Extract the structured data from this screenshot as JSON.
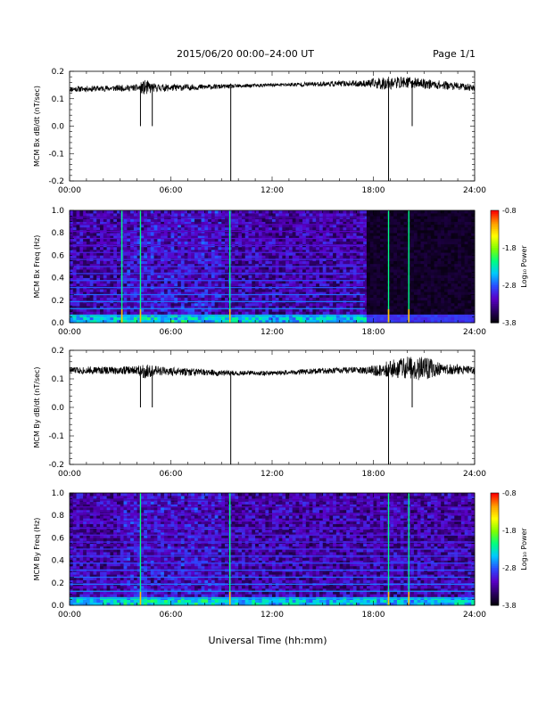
{
  "header": {
    "title": "2015/06/20  00:00–24:00 UT",
    "page": "Page 1/1"
  },
  "footer": {
    "xlabel": "Universal Time (hh:mm)"
  },
  "colorbar": {
    "label": "Log₁₀ Power",
    "ticks": [
      "-0.8",
      "-1.8",
      "-2.8",
      "-3.8"
    ],
    "colors": [
      "#000000",
      "#2a0060",
      "#5a00c8",
      "#2a4cff",
      "#00c8ff",
      "#00ff80",
      "#80ff00",
      "#ffff00",
      "#ffa000",
      "#ff0000"
    ]
  },
  "chart_data": [
    {
      "type": "line",
      "ylabel": "MCM Bx dB/dt (nT/sec)",
      "xticks": [
        "00:00",
        "06:00",
        "12:00",
        "18:00",
        "24:00"
      ],
      "xlim": [
        0,
        24
      ],
      "yticks": [
        "0.2",
        "0.1",
        "0.0",
        "-0.1",
        "-0.2"
      ],
      "ylim": [
        -0.2,
        0.2
      ],
      "baseline": [
        [
          0,
          0.135
        ],
        [
          4,
          0.14
        ],
        [
          6,
          0.14
        ],
        [
          9.5,
          0.145
        ],
        [
          12,
          0.15
        ],
        [
          16,
          0.155
        ],
        [
          18,
          0.155
        ],
        [
          20,
          0.16
        ],
        [
          24,
          0.14
        ]
      ],
      "noise": [
        [
          0,
          0.01
        ],
        [
          4,
          0.012
        ],
        [
          4.5,
          0.03
        ],
        [
          5,
          0.015
        ],
        [
          9,
          0.008
        ],
        [
          12,
          0.006
        ],
        [
          17.5,
          0.012
        ],
        [
          18.5,
          0.025
        ],
        [
          20,
          0.02
        ],
        [
          24,
          0.012
        ]
      ],
      "spikes": [
        {
          "t": 4.2,
          "y": 0.0
        },
        {
          "t": 4.9,
          "y": 0.0
        },
        {
          "t": 9.55,
          "y": -0.2
        },
        {
          "t": 18.9,
          "y": -0.2
        },
        {
          "t": 20.3,
          "y": 0.0
        }
      ]
    },
    {
      "type": "heatmap",
      "ylabel": "MCM Bx Freq (Hz)",
      "xticks": [
        "00:00",
        "06:00",
        "12:00",
        "18:00",
        "24:00"
      ],
      "xlim": [
        0,
        24
      ],
      "yticks": [
        "1.0",
        "0.8",
        "0.6",
        "0.4",
        "0.2",
        "0.0"
      ],
      "ylim": [
        0,
        1.0
      ],
      "harmonic_step": 0.0625,
      "active_until": 17.5,
      "vertical_lines": [
        3.1,
        4.2,
        9.5,
        18.9,
        20.1
      ]
    },
    {
      "type": "line",
      "ylabel": "MCM By dB/dt (nT/sec)",
      "xticks": [
        "00:00",
        "06:00",
        "12:00",
        "18:00",
        "24:00"
      ],
      "xlim": [
        0,
        24
      ],
      "yticks": [
        "0.2",
        "0.1",
        "0.0",
        "-0.1",
        "-0.2"
      ],
      "ylim": [
        -0.2,
        0.2
      ],
      "baseline": [
        [
          0,
          0.13
        ],
        [
          4,
          0.13
        ],
        [
          6,
          0.125
        ],
        [
          9.5,
          0.12
        ],
        [
          12,
          0.12
        ],
        [
          16,
          0.13
        ],
        [
          18,
          0.13
        ],
        [
          20,
          0.14
        ],
        [
          24,
          0.13
        ]
      ],
      "noise": [
        [
          0,
          0.012
        ],
        [
          4,
          0.015
        ],
        [
          4.5,
          0.03
        ],
        [
          5,
          0.018
        ],
        [
          9,
          0.01
        ],
        [
          12,
          0.008
        ],
        [
          17.5,
          0.012
        ],
        [
          19.5,
          0.035
        ],
        [
          21,
          0.045
        ],
        [
          22,
          0.02
        ],
        [
          24,
          0.015
        ]
      ],
      "spikes": [
        {
          "t": 4.2,
          "y": 0.0
        },
        {
          "t": 4.9,
          "y": 0.0
        },
        {
          "t": 9.55,
          "y": -0.2
        },
        {
          "t": 18.9,
          "y": -0.2
        },
        {
          "t": 20.3,
          "y": 0.0
        }
      ]
    },
    {
      "type": "heatmap",
      "ylabel": "MCM By Freq (Hz)",
      "xticks": [
        "00:00",
        "06:00",
        "12:00",
        "18:00",
        "24:00"
      ],
      "xlim": [
        0,
        24
      ],
      "yticks": [
        "1.0",
        "0.8",
        "0.6",
        "0.4",
        "0.2",
        "0.0"
      ],
      "ylim": [
        0,
        1.0
      ],
      "harmonic_step": 0.0625,
      "active_until": 24,
      "vertical_lines": [
        4.2,
        9.5,
        18.9,
        20.1
      ]
    }
  ]
}
